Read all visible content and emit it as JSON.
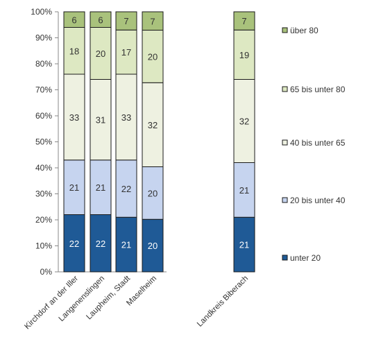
{
  "chart_data": {
    "type": "bar",
    "stacked": "percent",
    "title": "",
    "xlabel": "",
    "ylabel": "",
    "ylim": [
      0,
      100
    ],
    "y_ticks": [
      "0%",
      "10%",
      "20%",
      "30%",
      "40%",
      "50%",
      "60%",
      "70%",
      "80%",
      "90%",
      "100%"
    ],
    "grid": false,
    "legend_position": "right",
    "categories": [
      "Kirchdorf an der Iller",
      "Langenenslingen",
      "Laupheim, Stadt",
      "Maselheim",
      "Landkreis Biberach"
    ],
    "series": [
      {
        "name": "unter 20",
        "color": "#1f5a96",
        "label_color": "#ffffff",
        "values": [
          22,
          22,
          21,
          20,
          21
        ]
      },
      {
        "name": "20 bis unter 40",
        "color": "#c6d4ef",
        "label_color": "#333333",
        "values": [
          21,
          21,
          22,
          20,
          21
        ]
      },
      {
        "name": "40 bis unter 65",
        "color": "#eef1e1",
        "label_color": "#333333",
        "values": [
          33,
          31,
          33,
          32,
          32
        ]
      },
      {
        "name": "65 bis unter 80",
        "color": "#dde8c2",
        "label_color": "#333333",
        "values": [
          18,
          20,
          17,
          20,
          19
        ]
      },
      {
        "name": "über 80",
        "color": "#a9c27c",
        "label_color": "#333333",
        "values": [
          6,
          6,
          7,
          7,
          7
        ]
      }
    ]
  }
}
